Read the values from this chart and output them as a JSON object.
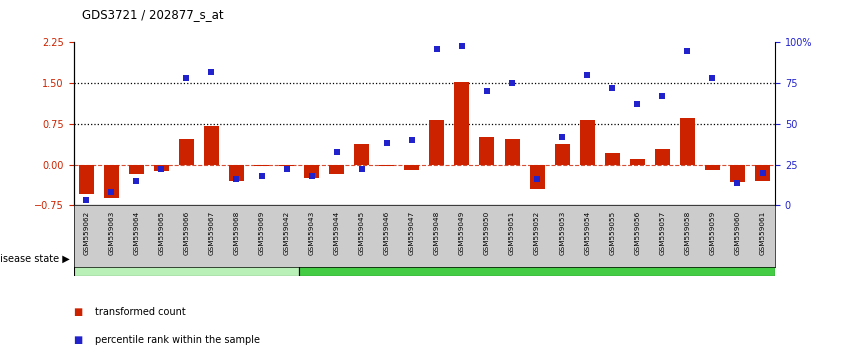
{
  "title": "GDS3721 / 202877_s_at",
  "samples": [
    "GSM559062",
    "GSM559063",
    "GSM559064",
    "GSM559065",
    "GSM559066",
    "GSM559067",
    "GSM559068",
    "GSM559069",
    "GSM559042",
    "GSM559043",
    "GSM559044",
    "GSM559045",
    "GSM559046",
    "GSM559047",
    "GSM559048",
    "GSM559049",
    "GSM559050",
    "GSM559051",
    "GSM559052",
    "GSM559053",
    "GSM559054",
    "GSM559055",
    "GSM559056",
    "GSM559057",
    "GSM559058",
    "GSM559059",
    "GSM559060",
    "GSM559061"
  ],
  "transformed_count": [
    -0.55,
    -0.62,
    -0.18,
    -0.12,
    0.48,
    0.72,
    -0.3,
    -0.02,
    -0.02,
    -0.25,
    -0.18,
    0.38,
    -0.03,
    -0.1,
    0.82,
    1.52,
    0.5,
    0.48,
    -0.45,
    0.38,
    0.82,
    0.22,
    0.1,
    0.28,
    0.85,
    -0.1,
    -0.32,
    -0.3
  ],
  "percentile_rank": [
    3,
    8,
    15,
    22,
    78,
    82,
    16,
    18,
    22,
    18,
    33,
    22,
    38,
    40,
    96,
    98,
    70,
    75,
    16,
    42,
    80,
    72,
    62,
    67,
    95,
    78,
    14,
    20
  ],
  "pCR_count": 9,
  "pPR_count": 19,
  "ylim_left": [
    -0.75,
    2.25
  ],
  "ylim_right": [
    0,
    100
  ],
  "yticks_left": [
    -0.75,
    0,
    0.75,
    1.5,
    2.25
  ],
  "yticks_right": [
    0,
    25,
    50,
    75,
    100
  ],
  "hline_dotted_black": [
    0.75,
    1.5
  ],
  "bar_color": "#cc2200",
  "dot_color": "#2222cc",
  "pCR_color": "#b8f0b8",
  "pPR_color": "#44cc44",
  "tick_bg_color": "#cccccc",
  "label_bar": "transformed count",
  "label_dot": "percentile rank within the sample"
}
